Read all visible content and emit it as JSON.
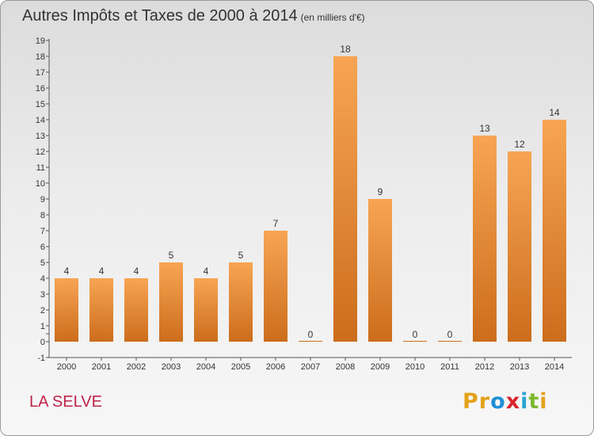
{
  "title": "Autres Impôts et Taxes de 2000 à 2014",
  "subtitle": "(en milliers d'€)",
  "commune": "LA SELVE",
  "brand": {
    "letters": [
      "P",
      "r",
      "o",
      "x",
      "i",
      "t",
      "i"
    ],
    "colors": [
      "#e3a21a",
      "#e3a21a",
      "#1e8fd6",
      "#d8262d",
      "#2aa3d0",
      "#7cb82f",
      "#e3a21a"
    ]
  },
  "colors": {
    "bar_top": "#f7a553",
    "bar_bottom": "#cc6d1c",
    "axis": "#555555",
    "grid": "#cccccc"
  },
  "chart_data": {
    "type": "bar",
    "title": "Autres Impôts et Taxes de 2000 à 2014",
    "subtitle": "(en milliers d'€)",
    "categories": [
      "2000",
      "2001",
      "2002",
      "2003",
      "2004",
      "2005",
      "2006",
      "2007",
      "2008",
      "2009",
      "2010",
      "2011",
      "2012",
      "2013",
      "2014"
    ],
    "values": [
      4,
      4,
      4,
      5,
      4,
      5,
      7,
      0,
      18,
      9,
      0,
      0,
      13,
      12,
      14
    ],
    "yticks": [
      "-1",
      "0",
      "",
      "1",
      "2",
      "3",
      "4",
      "5",
      "6",
      "7",
      "8",
      "9",
      "10",
      "11",
      "12",
      "13",
      "14",
      "15",
      "16",
      "17",
      "18",
      "19"
    ],
    "ylim": [
      -1,
      19
    ],
    "grid": false,
    "legend": "none"
  }
}
